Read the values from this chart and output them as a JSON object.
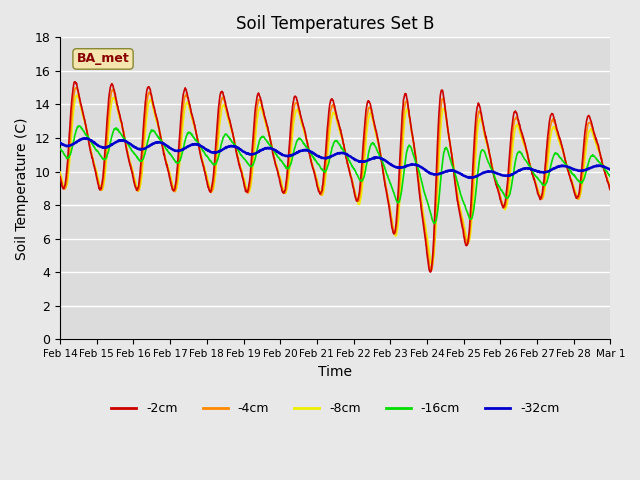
{
  "title": "Soil Temperatures Set B",
  "xlabel": "Time",
  "ylabel": "Soil Temperature (C)",
  "ylim": [
    0,
    18
  ],
  "yticks": [
    0,
    2,
    4,
    6,
    8,
    10,
    12,
    14,
    16,
    18
  ],
  "colors": {
    "-2cm": "#cc0000",
    "-4cm": "#ff8800",
    "-8cm": "#eeee00",
    "-16cm": "#00dd00",
    "-32cm": "#0000cc"
  },
  "line_widths": {
    "-2cm": 1.2,
    "-4cm": 1.2,
    "-8cm": 1.2,
    "-16cm": 1.2,
    "-32cm": 1.8
  },
  "legend_label": "BA_met",
  "legend_box_facecolor": "#f5e6b0",
  "legend_box_edgecolor": "#888833",
  "legend_text_color": "#880000",
  "plot_bg_color": "#dcdcdc",
  "fig_bg_color": "#e8e8e8",
  "grid_color": "#ffffff",
  "figsize": [
    6.4,
    4.8
  ],
  "dpi": 100
}
